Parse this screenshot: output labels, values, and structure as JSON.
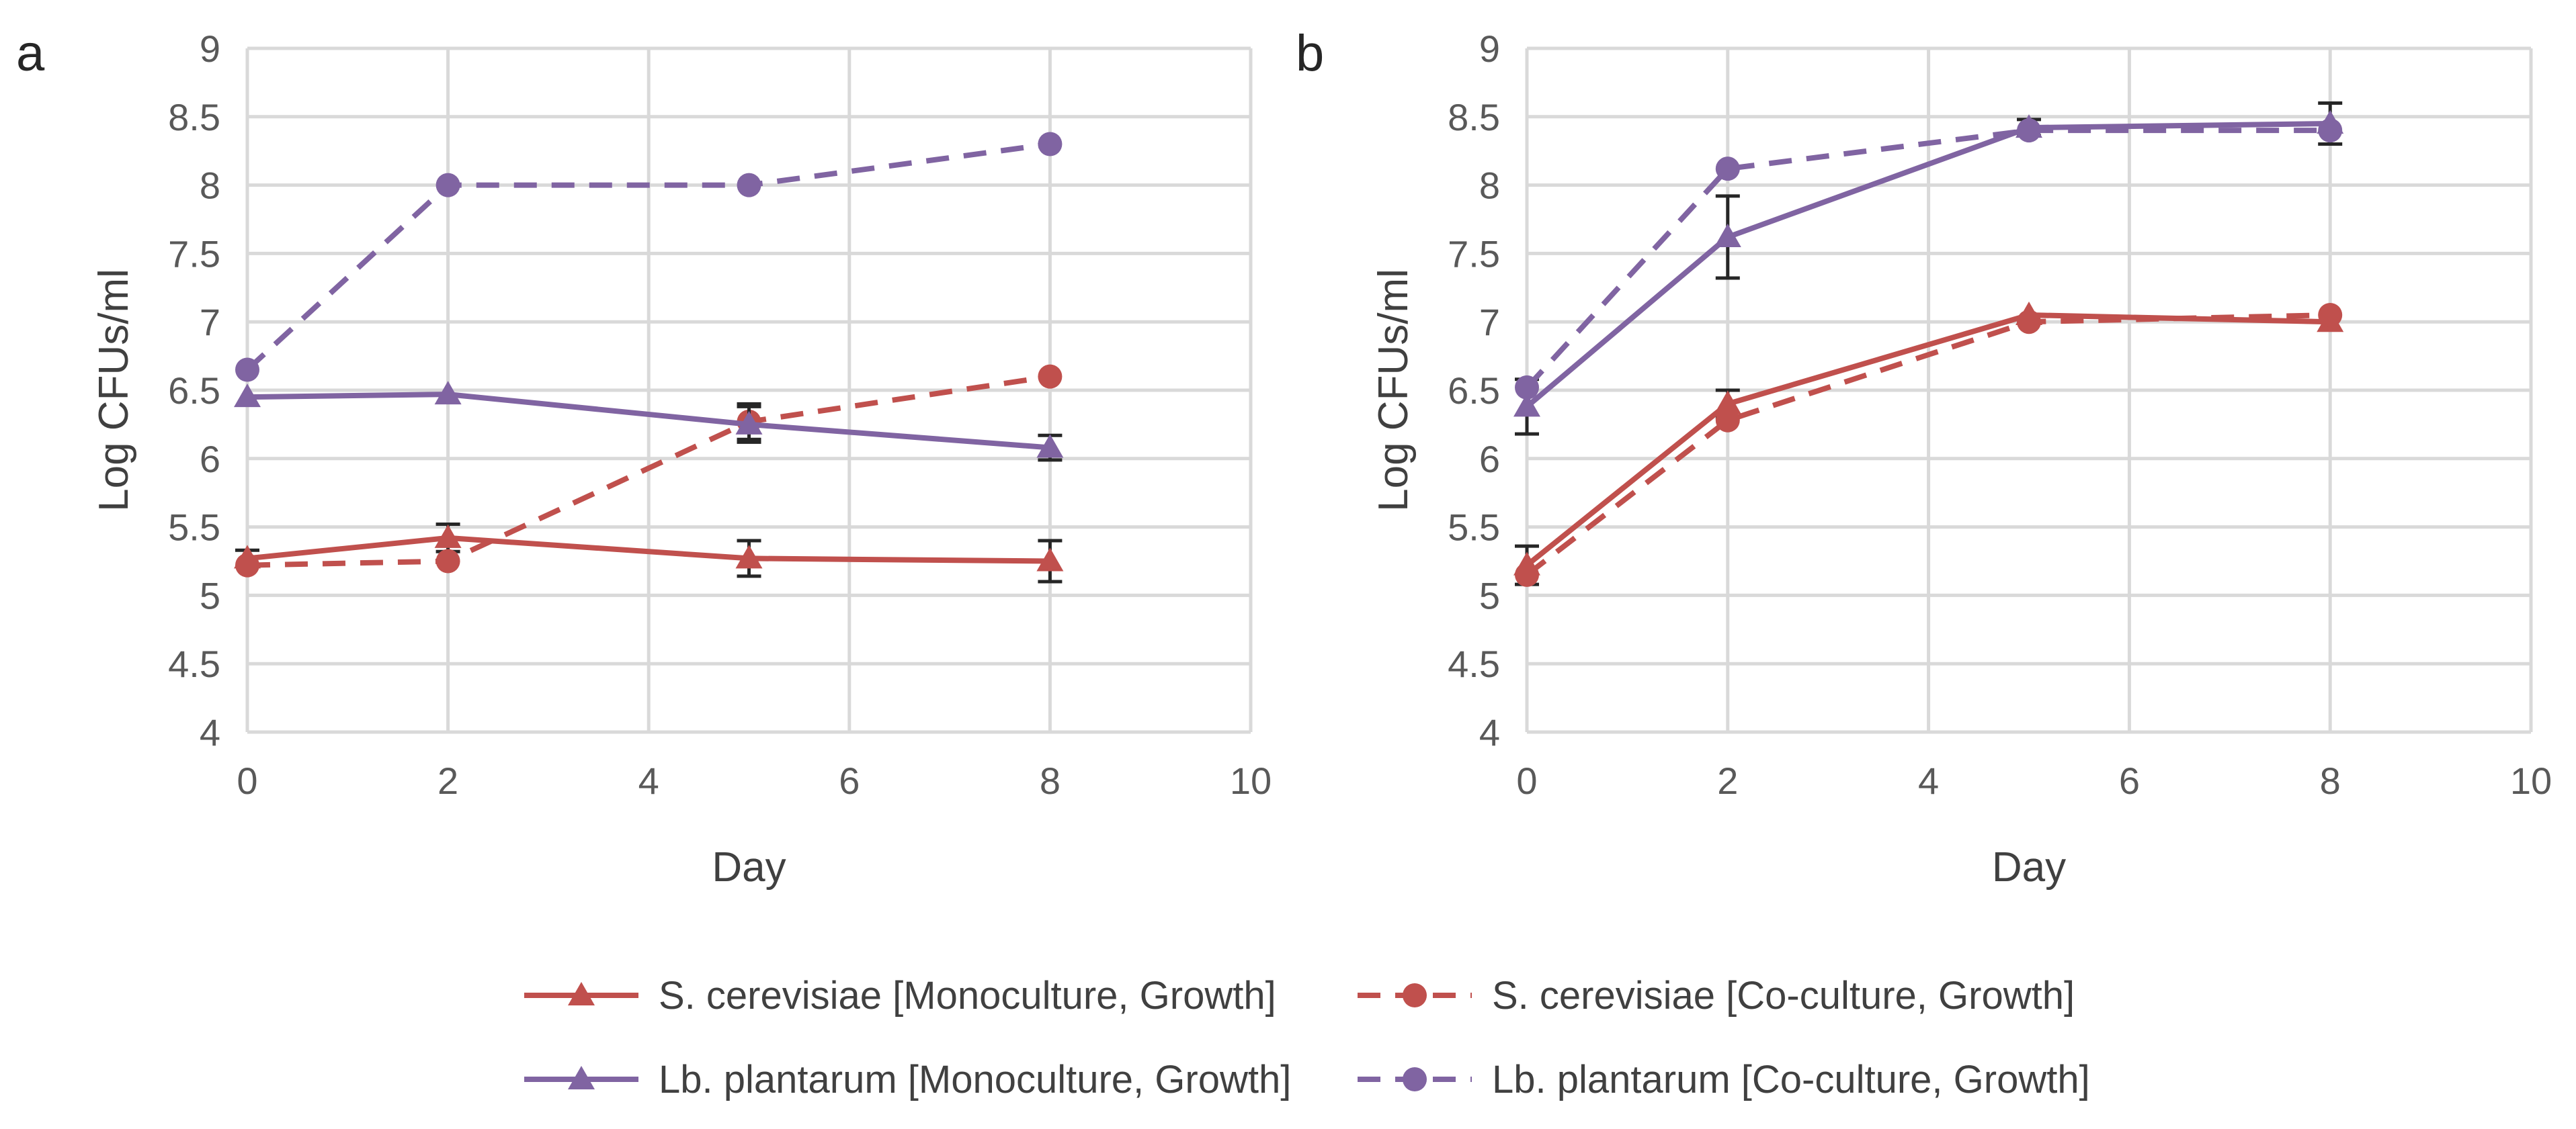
{
  "colors": {
    "scerevisiae": "#c0504d",
    "lbplantarum": "#8064a2",
    "errorbar": "#262626"
  },
  "legend": [
    {
      "label": "S. cerevisiae [Monoculture, Growth]",
      "color": "#c0504d",
      "dash": "solid",
      "marker": "triangle"
    },
    {
      "label": "S. cerevisiae [Co-culture, Growth]",
      "color": "#c0504d",
      "dash": "dashed",
      "marker": "circle"
    },
    {
      "label": "Lb. plantarum [Monoculture, Growth]",
      "color": "#8064a2",
      "dash": "solid",
      "marker": "triangle"
    },
    {
      "label": "Lb. plantarum [Co-culture, Growth]",
      "color": "#8064a2",
      "dash": "dashed",
      "marker": "circle"
    }
  ],
  "chart_data": [
    {
      "panel": "a",
      "type": "line",
      "xlabel": "Day",
      "ylabel": "Log CFUs/ml",
      "xlim": [
        0,
        10
      ],
      "ylim": [
        4,
        9
      ],
      "xticks": [
        "0",
        "2",
        "4",
        "6",
        "8",
        "10"
      ],
      "yticks": [
        "4",
        "4.5",
        "5",
        "5.5",
        "6",
        "6.5",
        "7",
        "7.5",
        "8",
        "8.5",
        "9"
      ],
      "x": [
        0,
        2,
        5,
        8
      ],
      "series": [
        {
          "name": "S. cerevisiae [Monoculture, Growth]",
          "color": "#c0504d",
          "dash": "solid",
          "marker": "triangle",
          "values": [
            5.27,
            5.42,
            5.27,
            5.25
          ],
          "errors": [
            0.06,
            0.1,
            0.13,
            0.15
          ]
        },
        {
          "name": "S. cerevisiae [Co-culture, Growth]",
          "color": "#c0504d",
          "dash": "dashed",
          "marker": "circle",
          "values": [
            5.22,
            5.25,
            6.27,
            6.6
          ],
          "errors": [
            0,
            0,
            0.13,
            0
          ]
        },
        {
          "name": "Lb. plantarum [Monoculture, Growth]",
          "color": "#8064a2",
          "dash": "solid",
          "marker": "triangle",
          "values": [
            6.45,
            6.47,
            6.25,
            6.08
          ],
          "errors": [
            0,
            0,
            0.13,
            0.09
          ]
        },
        {
          "name": "Lb. plantarum [Co-culture, Growth]",
          "color": "#8064a2",
          "dash": "dashed",
          "marker": "circle",
          "values": [
            6.65,
            8.0,
            8.0,
            8.3
          ],
          "errors": [
            0,
            0,
            0,
            0
          ]
        }
      ]
    },
    {
      "panel": "b",
      "type": "line",
      "xlabel": "Day",
      "ylabel": "Log CFUs/ml",
      "xlim": [
        0,
        10
      ],
      "ylim": [
        4,
        9
      ],
      "xticks": [
        "0",
        "2",
        "4",
        "6",
        "8",
        "10"
      ],
      "yticks": [
        "4",
        "4.5",
        "5",
        "5.5",
        "6",
        "6.5",
        "7",
        "7.5",
        "8",
        "8.5",
        "9"
      ],
      "x": [
        0,
        2,
        5,
        8
      ],
      "series": [
        {
          "name": "S. cerevisiae [Monoculture, Growth]",
          "color": "#c0504d",
          "dash": "solid",
          "marker": "triangle",
          "values": [
            5.22,
            6.4,
            7.05,
            7.0
          ],
          "errors": [
            0.14,
            0.1,
            0,
            0
          ]
        },
        {
          "name": "S. cerevisiae [Co-culture, Growth]",
          "color": "#c0504d",
          "dash": "dashed",
          "marker": "circle",
          "values": [
            5.15,
            6.28,
            7.0,
            7.05
          ],
          "errors": [
            0,
            0,
            0,
            0
          ]
        },
        {
          "name": "Lb. plantarum [Monoculture, Growth]",
          "color": "#8064a2",
          "dash": "solid",
          "marker": "triangle",
          "values": [
            6.38,
            7.62,
            8.42,
            8.45
          ],
          "errors": [
            0.2,
            0.3,
            0.06,
            0.15
          ]
        },
        {
          "name": "Lb. plantarum [Co-culture, Growth]",
          "color": "#8064a2",
          "dash": "dashed",
          "marker": "circle",
          "values": [
            6.52,
            8.12,
            8.4,
            8.4
          ],
          "errors": [
            0,
            0,
            0,
            0
          ]
        }
      ]
    }
  ]
}
